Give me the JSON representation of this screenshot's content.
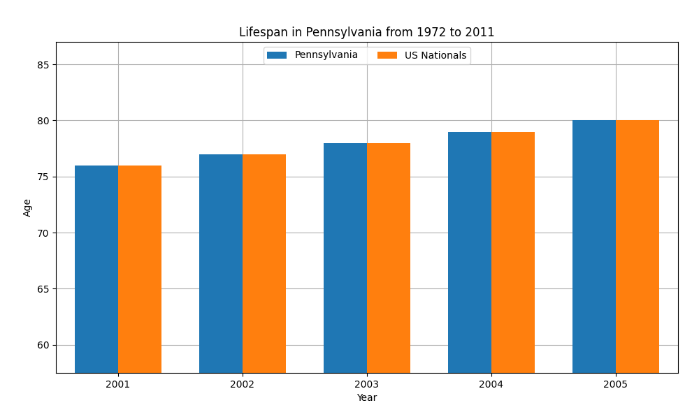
{
  "chart_data": {
    "type": "bar",
    "title": "Lifespan in Pennsylvania from 1972 to 2011",
    "x_label": "Year",
    "y_label": "Age",
    "categories": [
      "2001",
      "2002",
      "2003",
      "2004",
      "2005"
    ],
    "series": [
      {
        "name": "Pennsylvania",
        "values": [
          76,
          77,
          78,
          79,
          80
        ]
      },
      {
        "name": "US Nationals",
        "values": [
          76,
          77,
          78,
          79,
          80
        ]
      }
    ],
    "ylim": [
      57.5,
      87
    ],
    "yticks": [
      60,
      65,
      70,
      75,
      80,
      85
    ],
    "grid": true,
    "legend": "upper center"
  }
}
